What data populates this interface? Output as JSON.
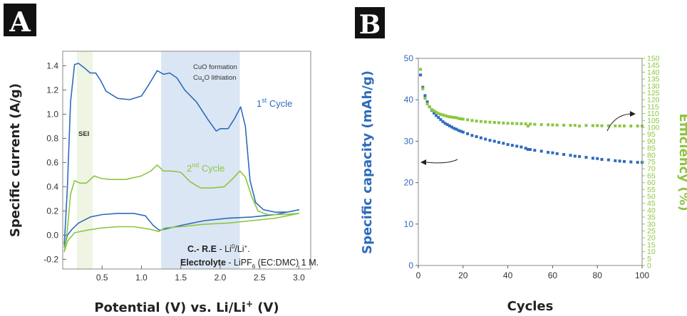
{
  "panels": {
    "a_label": "A",
    "b_label": "B"
  },
  "colors": {
    "blue": "#2e6bbd",
    "green": "#8bc63f",
    "sei_shade": "#eef5e3",
    "cuo_shade": "#dbe6f4"
  },
  "chart_data": [
    {
      "type": "line",
      "panel": "A",
      "xlabel": "Potential (V) vs. Li/Li",
      "xlabel_sup": "+",
      "xlabel_suffix": " (V)",
      "ylabel": "Specific current (A/g)",
      "xlim": [
        0,
        3.15
      ],
      "ylim": [
        -0.28,
        1.52
      ],
      "xticks": [
        "0.5",
        "1.0",
        "1.5",
        "2.0",
        "2.5",
        "3.0"
      ],
      "yticks": [
        "-0.2",
        "0.0",
        "0.2",
        "0.4",
        "0.6",
        "0.8",
        "1.0",
        "1.2",
        "1.4"
      ],
      "shaded_regions": [
        {
          "label": "SEI",
          "x": [
            0.18,
            0.38
          ]
        },
        {
          "label": "CuO formation / CuxO lithiation",
          "x": [
            1.25,
            2.25
          ]
        }
      ],
      "annotations": {
        "sei": "SEI",
        "cuo_formation": "CuO formation",
        "cuxo_main": "Cu",
        "cuxo_sub": "x",
        "cuxo_rest": "O lithiation",
        "cycle1_main": "1",
        "cycle1_sup": "st",
        "cycle1_rest": " Cycle",
        "cycle2_main": "2",
        "cycle2_sup": "nd",
        "cycle2_rest": " Cycle",
        "re_label": "C.- R.E",
        "re_value": " - Li",
        "re_sup": "0",
        "re_tail": "/Li",
        "re_tail_sup": "+",
        "re_end": ".",
        "el_label": "Electrolyte",
        "el_value": " - LiPF",
        "el_sub": "6",
        "el_tail": " (EC:DMC) 1 M."
      },
      "series": [
        {
          "name": "1st Cycle",
          "color": "#2e6bbd",
          "upper": [
            [
              0.02,
              -0.08
            ],
            [
              0.06,
              0.4
            ],
            [
              0.1,
              1.1
            ],
            [
              0.15,
              1.41
            ],
            [
              0.2,
              1.42
            ],
            [
              0.28,
              1.38
            ],
            [
              0.35,
              1.34
            ],
            [
              0.42,
              1.34
            ],
            [
              0.48,
              1.28
            ],
            [
              0.55,
              1.19
            ],
            [
              0.7,
              1.13
            ],
            [
              0.85,
              1.12
            ],
            [
              1.0,
              1.15
            ],
            [
              1.1,
              1.25
            ],
            [
              1.2,
              1.36
            ],
            [
              1.28,
              1.33
            ],
            [
              1.36,
              1.34
            ],
            [
              1.45,
              1.3
            ],
            [
              1.55,
              1.2
            ],
            [
              1.7,
              1.1
            ],
            [
              1.85,
              0.95
            ],
            [
              1.95,
              0.86
            ],
            [
              2.0,
              0.88
            ],
            [
              2.1,
              0.88
            ],
            [
              2.18,
              0.96
            ],
            [
              2.26,
              1.06
            ],
            [
              2.32,
              0.9
            ],
            [
              2.38,
              0.45
            ],
            [
              2.45,
              0.27
            ],
            [
              2.55,
              0.21
            ],
            [
              2.7,
              0.19
            ],
            [
              2.85,
              0.19
            ],
            [
              3.0,
              0.21
            ]
          ],
          "lower": [
            [
              3.0,
              0.21
            ],
            [
              2.7,
              0.17
            ],
            [
              2.4,
              0.15
            ],
            [
              2.1,
              0.14
            ],
            [
              1.8,
              0.12
            ],
            [
              1.5,
              0.08
            ],
            [
              1.3,
              0.05
            ],
            [
              1.23,
              0.04
            ],
            [
              1.15,
              0.08
            ],
            [
              1.05,
              0.16
            ],
            [
              0.9,
              0.18
            ],
            [
              0.7,
              0.18
            ],
            [
              0.5,
              0.17
            ],
            [
              0.35,
              0.15
            ],
            [
              0.2,
              0.1
            ],
            [
              0.12,
              0.05
            ],
            [
              0.06,
              0.0
            ],
            [
              0.02,
              -0.1
            ]
          ]
        },
        {
          "name": "2nd Cycle",
          "color": "#8bc63f",
          "upper": [
            [
              0.02,
              -0.14
            ],
            [
              0.06,
              0.05
            ],
            [
              0.1,
              0.34
            ],
            [
              0.15,
              0.45
            ],
            [
              0.22,
              0.43
            ],
            [
              0.3,
              0.43
            ],
            [
              0.4,
              0.49
            ],
            [
              0.48,
              0.47
            ],
            [
              0.6,
              0.46
            ],
            [
              0.8,
              0.46
            ],
            [
              1.0,
              0.49
            ],
            [
              1.12,
              0.53
            ],
            [
              1.2,
              0.58
            ],
            [
              1.28,
              0.53
            ],
            [
              1.38,
              0.53
            ],
            [
              1.5,
              0.52
            ],
            [
              1.62,
              0.44
            ],
            [
              1.75,
              0.39
            ],
            [
              1.9,
              0.39
            ],
            [
              2.05,
              0.4
            ],
            [
              2.15,
              0.46
            ],
            [
              2.25,
              0.53
            ],
            [
              2.32,
              0.48
            ],
            [
              2.4,
              0.32
            ],
            [
              2.48,
              0.2
            ],
            [
              2.6,
              0.17
            ],
            [
              2.8,
              0.17
            ],
            [
              3.0,
              0.18
            ]
          ],
          "lower": [
            [
              3.0,
              0.18
            ],
            [
              2.7,
              0.14
            ],
            [
              2.4,
              0.12
            ],
            [
              2.1,
              0.1
            ],
            [
              1.8,
              0.09
            ],
            [
              1.5,
              0.07
            ],
            [
              1.3,
              0.06
            ],
            [
              1.22,
              0.03
            ],
            [
              1.1,
              0.05
            ],
            [
              0.9,
              0.07
            ],
            [
              0.7,
              0.07
            ],
            [
              0.5,
              0.06
            ],
            [
              0.3,
              0.04
            ],
            [
              0.15,
              0.02
            ],
            [
              0.06,
              -0.05
            ],
            [
              0.02,
              -0.14
            ]
          ]
        }
      ]
    },
    {
      "type": "scatter",
      "panel": "B",
      "xlabel": "Cycles",
      "ylabel": "Specific capacity (mAh/g)",
      "y2label": "Efficiency (%)",
      "xlim": [
        0,
        100
      ],
      "ylim": [
        0,
        50
      ],
      "y2lim": [
        0,
        150
      ],
      "xticks": [
        0,
        20,
        40,
        60,
        80,
        100
      ],
      "yticks": [
        0,
        10,
        20,
        30,
        40,
        50
      ],
      "y2ticks": [
        0,
        5,
        10,
        15,
        20,
        25,
        30,
        35,
        40,
        45,
        50,
        55,
        60,
        65,
        70,
        75,
        80,
        85,
        90,
        95,
        100,
        105,
        110,
        115,
        120,
        125,
        130,
        135,
        140,
        145,
        150
      ],
      "series": [
        {
          "name": "Specific capacity",
          "axis": "left",
          "color": "#2e6bbd",
          "x": [
            1,
            2,
            3,
            4,
            5,
            6,
            7,
            8,
            9,
            10,
            11,
            12,
            13,
            14,
            15,
            16,
            17,
            18,
            19,
            20,
            22,
            24,
            26,
            28,
            30,
            32,
            34,
            36,
            38,
            40,
            42,
            44,
            46,
            48,
            49,
            50,
            52,
            55,
            58,
            60,
            62,
            65,
            68,
            70,
            72,
            75,
            78,
            80,
            82,
            85,
            88,
            90,
            92,
            95,
            98,
            100
          ],
          "values": [
            46,
            43,
            41,
            39.5,
            38.3,
            37.5,
            36.8,
            36.2,
            35.7,
            35.2,
            34.7,
            34.3,
            34,
            33.7,
            33.4,
            33.1,
            32.9,
            32.6,
            32.4,
            32.2,
            31.8,
            31.4,
            31.1,
            30.8,
            30.5,
            30.2,
            30,
            29.7,
            29.5,
            29.2,
            29,
            28.8,
            28.6,
            28.3,
            28,
            28,
            27.8,
            27.6,
            27.3,
            27.2,
            27,
            26.8,
            26.6,
            26.4,
            26.3,
            26.1,
            25.9,
            25.8,
            25.6,
            25.5,
            25.3,
            25.2,
            25.1,
            25,
            24.9,
            24.9
          ]
        },
        {
          "name": "Efficiency",
          "axis": "right",
          "color": "#8bc63f",
          "x": [
            1,
            2,
            3,
            4,
            5,
            6,
            7,
            8,
            9,
            10,
            11,
            12,
            13,
            14,
            15,
            16,
            17,
            18,
            19,
            20,
            22,
            24,
            26,
            28,
            30,
            32,
            34,
            36,
            38,
            40,
            42,
            44,
            46,
            48,
            49,
            50,
            52,
            55,
            58,
            60,
            62,
            65,
            68,
            70,
            72,
            75,
            78,
            80,
            82,
            85,
            88,
            90,
            92,
            95,
            98,
            100
          ],
          "values": [
            142,
            128,
            121,
            117,
            115,
            113,
            112,
            111,
            110,
            109.5,
            109,
            108.5,
            108,
            107.7,
            107.4,
            107.2,
            107,
            106.5,
            106.2,
            106,
            105.5,
            105,
            104.6,
            104.3,
            104,
            103.8,
            103.6,
            103.4,
            103.2,
            103,
            102.9,
            102.8,
            102.7,
            102.5,
            101,
            102.4,
            102.2,
            102,
            101.9,
            101.8,
            101.7,
            101.6,
            101.5,
            101.5,
            101,
            101.4,
            101.3,
            101.3,
            101.2,
            101.2,
            101.1,
            101.1,
            101.1,
            101,
            101,
            101
          ]
        }
      ]
    }
  ]
}
